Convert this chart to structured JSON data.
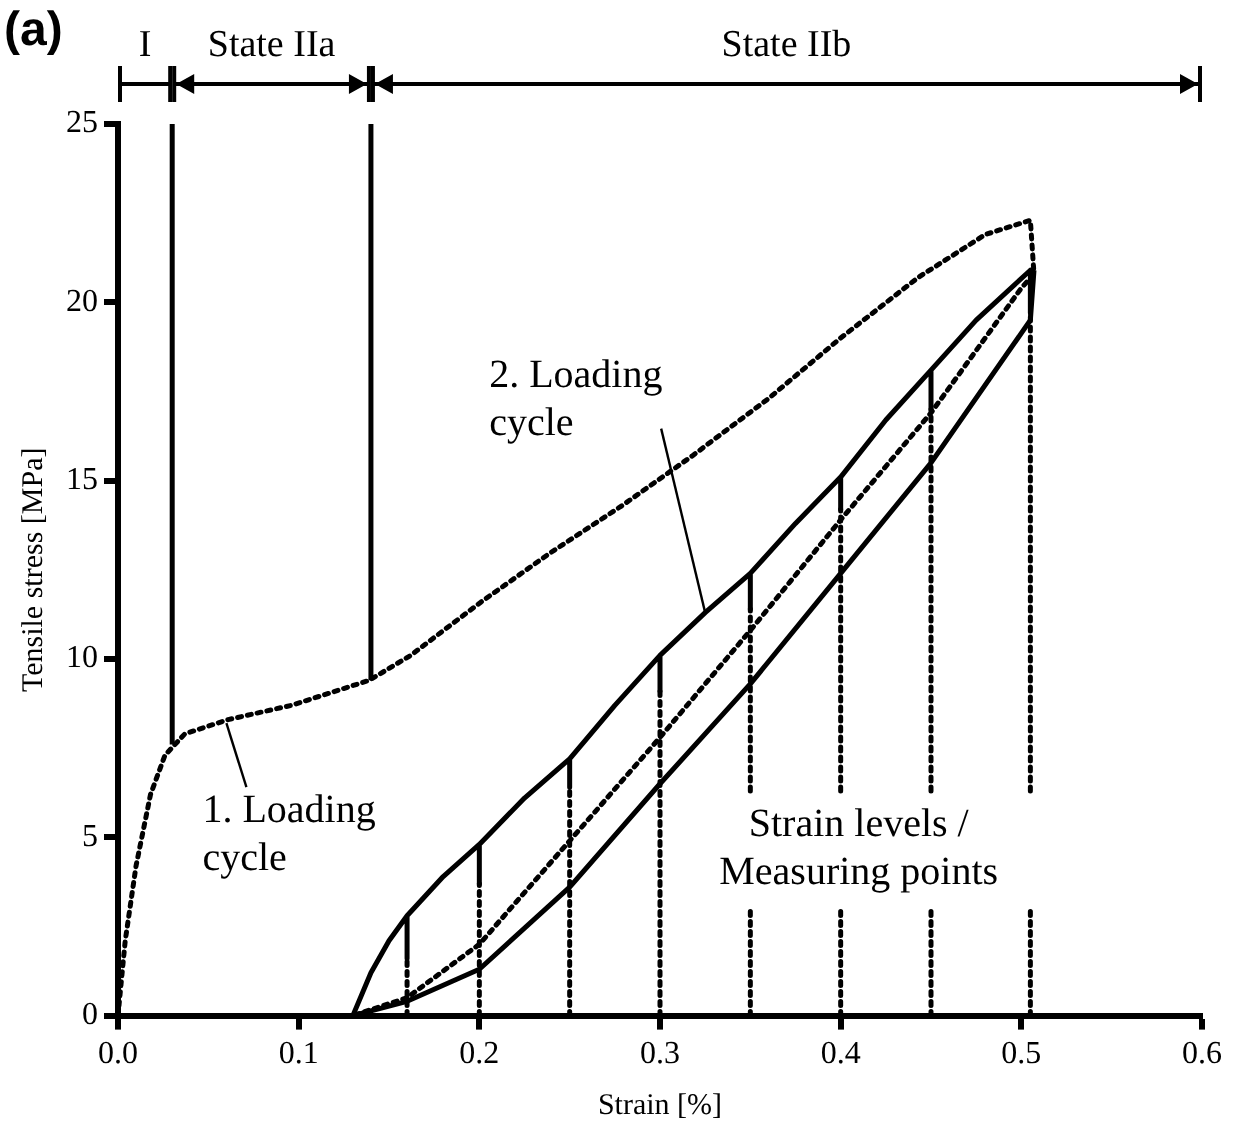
{
  "chart_data": {
    "type": "line",
    "xlabel": "Strain [%]",
    "ylabel": "Tensile stress [MPa]",
    "xlim": [
      0,
      0.6
    ],
    "ylim": [
      0,
      25
    ],
    "xticks": [
      {
        "value": 0,
        "label": "0.0"
      },
      {
        "value": 0.1,
        "label": "0.1"
      },
      {
        "value": 0.2,
        "label": "0.2"
      },
      {
        "value": 0.3,
        "label": "0.3"
      },
      {
        "value": 0.4,
        "label": "0.4"
      },
      {
        "value": 0.5,
        "label": "0.5"
      },
      {
        "value": 0.6,
        "label": "0.6"
      }
    ],
    "yticks": [
      0,
      5,
      10,
      15,
      20,
      25
    ],
    "grid": false,
    "marker": "none",
    "series": [
      {
        "color": "#000000",
        "line_style": "dotted",
        "x": [
          0,
          0.004,
          0.01,
          0.018,
          0.026,
          0.037,
          0.061,
          0.096,
          0.139,
          0.162,
          0.201,
          0.24,
          0.279,
          0.318,
          0.36,
          0.4,
          0.443,
          0.48,
          0.505,
          0.507,
          0.5,
          0.45,
          0.4,
          0.35,
          0.3,
          0.25,
          0.2,
          0.16,
          0.13
        ],
        "values": [
          0,
          2.1,
          4.2,
          6.2,
          7.3,
          7.9,
          8.3,
          8.7,
          9.4,
          10.1,
          11.6,
          13.0,
          14.3,
          15.7,
          17.3,
          19.0,
          20.7,
          21.9,
          22.3,
          20.8,
          20.4,
          16.9,
          13.9,
          10.8,
          7.8,
          4.9,
          2.0,
          0.5,
          0
        ]
      },
      {
        "color": "#000000",
        "line_style": "solid",
        "x": [
          0.13,
          0.14,
          0.15,
          0.16,
          0.16,
          0.16,
          0.18,
          0.2,
          0.2,
          0.2,
          0.225,
          0.25,
          0.25,
          0.25,
          0.275,
          0.3,
          0.3,
          0.3,
          0.325,
          0.35,
          0.35,
          0.35,
          0.375,
          0.4,
          0.4,
          0.4,
          0.425,
          0.45,
          0.45,
          0.45,
          0.475,
          0.505,
          0.505
        ],
        "values": [
          0,
          1.2,
          2.1,
          2.8,
          1.6,
          2.8,
          3.9,
          4.8,
          3.7,
          4.8,
          6.1,
          7.2,
          6.4,
          7.2,
          8.7,
          10.1,
          9.1,
          10.1,
          11.3,
          12.4,
          11.4,
          12.4,
          13.8,
          15.1,
          14.2,
          15.1,
          16.7,
          18.1,
          17.0,
          18.1,
          19.5,
          20.9,
          19.7
        ]
      },
      {
        "color": "#000000",
        "line_style": "solid",
        "x": [
          0.507,
          0.505,
          0.45,
          0.4,
          0.35,
          0.3,
          0.25,
          0.2,
          0.16,
          0.13
        ],
        "values": [
          20.9,
          19.5,
          15.5,
          12.4,
          9.3,
          6.5,
          3.6,
          1.3,
          0.4,
          0
        ]
      },
      {
        "color": "#000000",
        "line_style": "dotted",
        "x": [
          0.16,
          0.16
        ],
        "values": [
          0,
          1.6
        ]
      },
      {
        "color": "#000000",
        "line_style": "dotted",
        "x": [
          0.2,
          0.2
        ],
        "values": [
          0,
          3.7
        ]
      },
      {
        "color": "#000000",
        "line_style": "dotted",
        "x": [
          0.25,
          0.25
        ],
        "values": [
          0,
          6.4
        ]
      },
      {
        "color": "#000000",
        "line_style": "dotted",
        "x": [
          0.3,
          0.3
        ],
        "values": [
          0,
          9.1
        ]
      },
      {
        "color": "#000000",
        "line_style": "dotted",
        "x": [
          0.35,
          0.35
        ],
        "values": [
          0,
          3.0
        ]
      },
      {
        "color": "#000000",
        "line_style": "dotted",
        "x": [
          0.35,
          0.35
        ],
        "values": [
          6.3,
          11.4
        ]
      },
      {
        "color": "#000000",
        "line_style": "dotted",
        "x": [
          0.4,
          0.4
        ],
        "values": [
          0,
          3.0
        ]
      },
      {
        "color": "#000000",
        "line_style": "dotted",
        "x": [
          0.4,
          0.4
        ],
        "values": [
          6.3,
          14.2
        ]
      },
      {
        "color": "#000000",
        "line_style": "dotted",
        "x": [
          0.45,
          0.45
        ],
        "values": [
          0,
          3.0
        ]
      },
      {
        "color": "#000000",
        "line_style": "dotted",
        "x": [
          0.45,
          0.45
        ],
        "values": [
          6.3,
          17.0
        ]
      },
      {
        "color": "#000000",
        "line_style": "dotted",
        "x": [
          0.505,
          0.505
        ],
        "values": [
          0,
          3.0
        ]
      },
      {
        "color": "#000000",
        "line_style": "dotted",
        "x": [
          0.505,
          0.505
        ],
        "values": [
          6.3,
          19.7
        ]
      },
      {
        "color": "#000000",
        "line_style": "solid",
        "x": [
          0.03,
          0.03
        ],
        "values": [
          7.6,
          25
        ]
      },
      {
        "color": "#000000",
        "line_style": "solid",
        "x": [
          0.14,
          0.14
        ],
        "values": [
          9.4,
          25
        ]
      }
    ],
    "annotations": [
      "(a)",
      "I",
      "State IIa",
      "State IIb",
      {
        "text": "1. Loading cycle",
        "x": 0.06,
        "y": 8.2
      },
      {
        "text": "2. Loading cycle",
        "x": 0.325,
        "y": 11.3
      },
      "Strain levels / Measuring points"
    ]
  }
}
